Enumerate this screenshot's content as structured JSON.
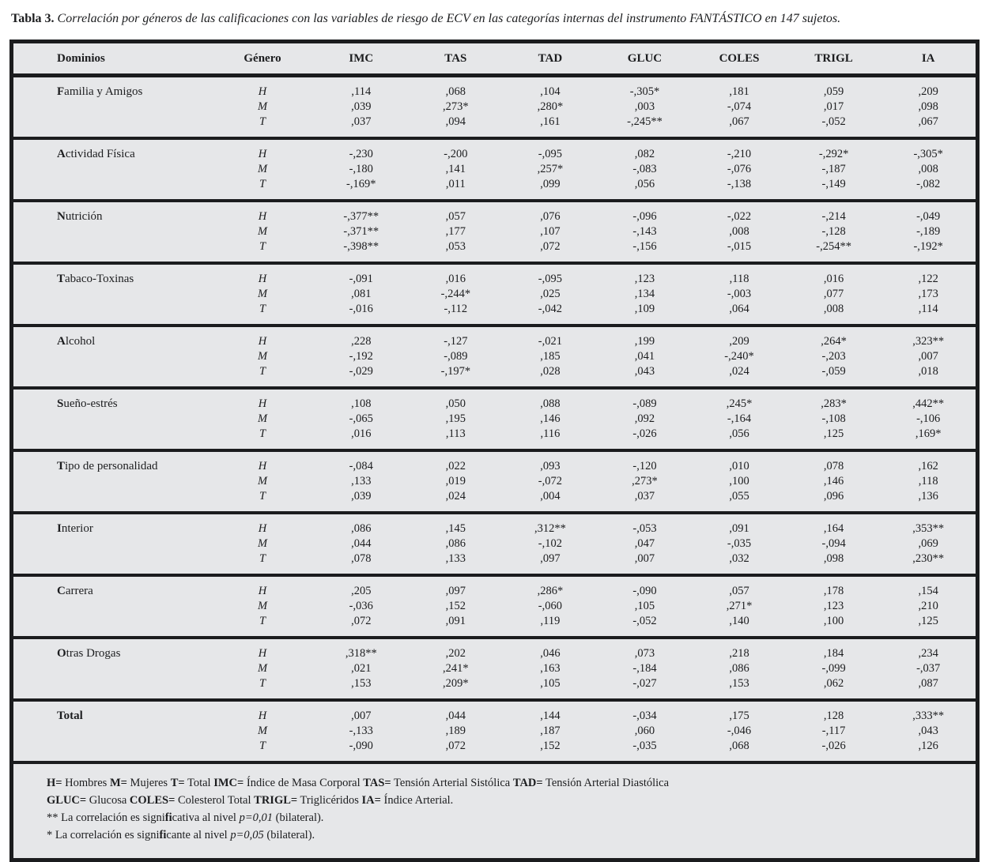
{
  "title": {
    "label": "Tabla 3.",
    "text": "Correlación por géneros de las calificaciones  con las variables de riesgo de ECV en las categorías internas del instrumento FANTÁSTICO en 147 sujetos."
  },
  "chart_data": {
    "type": "table",
    "title": "Correlación por géneros de las calificaciones con las variables de riesgo de ECV en las categorías internas del instrumento FANTÁSTICO en 147 sujetos"
  },
  "table": {
    "columns": [
      "Dominios",
      "Género",
      "IMC",
      "TAS",
      "TAD",
      "GLUC",
      "COLES",
      "TRIGL",
      "IA"
    ],
    "groups": [
      {
        "domain": "Familia y Amigos",
        "bold_all": false,
        "rows": [
          {
            "gender": "H",
            "values": [
              ",114",
              ",068",
              ",104",
              "-,305*",
              ",181",
              ",059",
              ",209"
            ]
          },
          {
            "gender": "M",
            "values": [
              ",039",
              ",273*",
              ",280*",
              ",003",
              "-,074",
              ",017",
              ",098"
            ]
          },
          {
            "gender": "T",
            "values": [
              ",037",
              ",094",
              ",161",
              "-,245**",
              ",067",
              "-,052",
              ",067"
            ]
          }
        ]
      },
      {
        "domain": "Actividad Física",
        "bold_all": false,
        "rows": [
          {
            "gender": "H",
            "values": [
              "-,230",
              "-,200",
              "-,095",
              ",082",
              "-,210",
              "-,292*",
              "-,305*"
            ]
          },
          {
            "gender": "M",
            "values": [
              "-,180",
              ",141",
              ",257*",
              "-,083",
              "-,076",
              "-,187",
              ",008"
            ]
          },
          {
            "gender": "T",
            "values": [
              "-,169*",
              ",011",
              ",099",
              ",056",
              "-,138",
              "-,149",
              "-,082"
            ]
          }
        ]
      },
      {
        "domain": "Nutrición",
        "bold_all": false,
        "rows": [
          {
            "gender": "H",
            "values": [
              "-,377**",
              ",057",
              ",076",
              "-,096",
              "-,022",
              "-,214",
              "-,049"
            ]
          },
          {
            "gender": "M",
            "values": [
              "-,371**",
              ",177",
              ",107",
              "-,143",
              ",008",
              "-,128",
              "-,189"
            ]
          },
          {
            "gender": "T",
            "values": [
              "-,398**",
              ",053",
              ",072",
              "-,156",
              "-,015",
              "-,254**",
              "-,192*"
            ]
          }
        ]
      },
      {
        "domain": "Tabaco-Toxinas",
        "bold_all": false,
        "rows": [
          {
            "gender": "H",
            "values": [
              "-,091",
              ",016",
              "-,095",
              ",123",
              ",118",
              ",016",
              ",122"
            ]
          },
          {
            "gender": "M",
            "values": [
              ",081",
              "-,244*",
              ",025",
              ",134",
              "-,003",
              ",077",
              ",173"
            ]
          },
          {
            "gender": "T",
            "values": [
              "-,016",
              "-,112",
              "-,042",
              ",109",
              ",064",
              ",008",
              ",114"
            ]
          }
        ]
      },
      {
        "domain": "Alcohol",
        "bold_all": false,
        "rows": [
          {
            "gender": "H",
            "values": [
              ",228",
              "-,127",
              "-,021",
              ",199",
              ",209",
              ",264*",
              ",323**"
            ]
          },
          {
            "gender": "M",
            "values": [
              "-,192",
              "-,089",
              ",185",
              ",041",
              "-,240*",
              "-,203",
              ",007"
            ]
          },
          {
            "gender": "T",
            "values": [
              "-,029",
              "-,197*",
              ",028",
              ",043",
              ",024",
              "-,059",
              ",018"
            ]
          }
        ]
      },
      {
        "domain": "Sueño-estrés",
        "bold_all": false,
        "rows": [
          {
            "gender": "H",
            "values": [
              ",108",
              ",050",
              ",088",
              "-,089",
              ",245*",
              ",283*",
              ",442**"
            ]
          },
          {
            "gender": "M",
            "values": [
              "-,065",
              ",195",
              ",146",
              ",092",
              "-,164",
              "-,108",
              "-,106"
            ]
          },
          {
            "gender": "T",
            "values": [
              ",016",
              ",113",
              ",116",
              "-,026",
              ",056",
              ",125",
              ",169*"
            ]
          }
        ]
      },
      {
        "domain": "Tipo de personalidad",
        "bold_all": false,
        "rows": [
          {
            "gender": "H",
            "values": [
              "-,084",
              ",022",
              ",093",
              "-,120",
              ",010",
              ",078",
              ",162"
            ]
          },
          {
            "gender": "M",
            "values": [
              ",133",
              ",019",
              "-,072",
              ",273*",
              ",100",
              ",146",
              ",118"
            ]
          },
          {
            "gender": "T",
            "values": [
              ",039",
              ",024",
              ",004",
              ",037",
              ",055",
              ",096",
              ",136"
            ]
          }
        ]
      },
      {
        "domain": "Interior",
        "bold_all": false,
        "rows": [
          {
            "gender": "H",
            "values": [
              ",086",
              ",145",
              ",312**",
              "-,053",
              ",091",
              ",164",
              ",353**"
            ]
          },
          {
            "gender": "M",
            "values": [
              ",044",
              ",086",
              "-,102",
              ",047",
              "-,035",
              "-,094",
              ",069"
            ]
          },
          {
            "gender": "T",
            "values": [
              ",078",
              ",133",
              ",097",
              ",007",
              ",032",
              ",098",
              ",230**"
            ]
          }
        ]
      },
      {
        "domain": "Carrera",
        "bold_all": false,
        "rows": [
          {
            "gender": "H",
            "values": [
              ",205",
              ",097",
              ",286*",
              "-,090",
              ",057",
              ",178",
              ",154"
            ]
          },
          {
            "gender": "M",
            "values": [
              "-,036",
              ",152",
              "-,060",
              ",105",
              ",271*",
              ",123",
              ",210"
            ]
          },
          {
            "gender": "T",
            "values": [
              ",072",
              ",091",
              ",119",
              "-,052",
              ",140",
              ",100",
              ",125"
            ]
          }
        ]
      },
      {
        "domain": "Otras Drogas",
        "bold_all": false,
        "rows": [
          {
            "gender": "H",
            "values": [
              ",318**",
              ",202",
              ",046",
              ",073",
              ",218",
              ",184",
              ",234"
            ]
          },
          {
            "gender": "M",
            "values": [
              ",021",
              ",241*",
              ",163",
              "-,184",
              ",086",
              "-,099",
              "-,037"
            ]
          },
          {
            "gender": "T",
            "values": [
              ",153",
              ",209*",
              ",105",
              "-,027",
              ",153",
              ",062",
              ",087"
            ]
          }
        ]
      },
      {
        "domain": "Total",
        "bold_all": true,
        "rows": [
          {
            "gender": "H",
            "values": [
              ",007",
              ",044",
              ",144",
              "-,034",
              ",175",
              ",128",
              ",333**"
            ]
          },
          {
            "gender": "M",
            "values": [
              "-,133",
              ",189",
              ",187",
              ",060",
              "-,046",
              "-,117",
              ",043"
            ]
          },
          {
            "gender": "T",
            "values": [
              "-,090",
              ",072",
              ",152",
              "-,035",
              ",068",
              "-,026",
              ",126"
            ]
          }
        ]
      }
    ]
  },
  "footnotes": {
    "lines": [
      {
        "segments": [
          {
            "t": "H=",
            "b": true
          },
          {
            "t": " Hombres  "
          },
          {
            "t": "M=",
            "b": true
          },
          {
            "t": " Mujeres "
          },
          {
            "t": "T=",
            "b": true
          },
          {
            "t": " Total "
          },
          {
            "t": "IMC=",
            "b": true
          },
          {
            "t": " Índice de Masa Corporal "
          },
          {
            "t": "TAS=",
            "b": true
          },
          {
            "t": " Tensión Arterial Sistólica  "
          },
          {
            "t": "TAD=",
            "b": true
          },
          {
            "t": " Tensión Arterial Diastólica"
          }
        ]
      },
      {
        "segments": [
          {
            "t": "GLUC=",
            "b": true
          },
          {
            "t": " Glucosa "
          },
          {
            "t": "COLES=",
            "b": true
          },
          {
            "t": " Colesterol Total "
          },
          {
            "t": "TRIGL=",
            "b": true
          },
          {
            "t": " Triglicéridos "
          },
          {
            "t": "IA=",
            "b": true
          },
          {
            "t": " Índice Arterial."
          }
        ]
      },
      {
        "segments": [
          {
            "t": "**  La correlación es signi"
          },
          {
            "t": "fi",
            "b": true
          },
          {
            "t": "cativa al nivel "
          },
          {
            "t": "p=0,01",
            "i": true
          },
          {
            "t": " (bilateral)."
          }
        ]
      },
      {
        "segments": [
          {
            "t": "*  La correlación es signi"
          },
          {
            "t": "fi",
            "b": true
          },
          {
            "t": "cante al nivel "
          },
          {
            "t": "p=0,05",
            "i": true
          },
          {
            "t": " (bilateral)."
          }
        ]
      }
    ]
  }
}
